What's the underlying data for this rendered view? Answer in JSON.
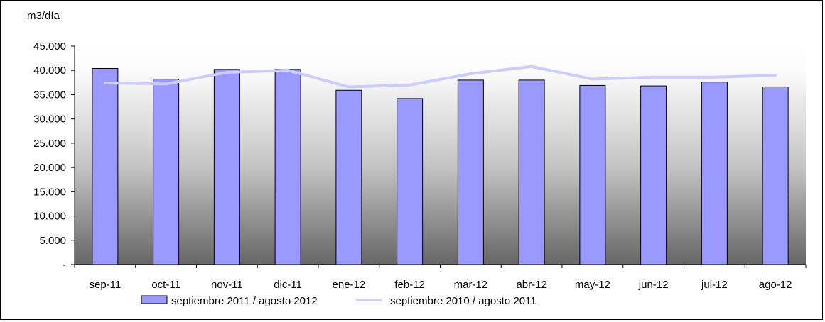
{
  "chart_data": {
    "type": "bar",
    "ylabel": "m3/día",
    "ylim": [
      0,
      45000
    ],
    "y_ticks": [
      {
        "value": 0,
        "label": "-"
      },
      {
        "value": 5000,
        "label": "5.000"
      },
      {
        "value": 10000,
        "label": "10.000"
      },
      {
        "value": 15000,
        "label": "15.000"
      },
      {
        "value": 20000,
        "label": "20.000"
      },
      {
        "value": 25000,
        "label": "25.000"
      },
      {
        "value": 30000,
        "label": "30.000"
      },
      {
        "value": 35000,
        "label": "35.000"
      },
      {
        "value": 40000,
        "label": "40.000"
      },
      {
        "value": 45000,
        "label": "45.000"
      }
    ],
    "categories": [
      "sep-11",
      "oct-11",
      "nov-11",
      "dic-11",
      "ene-12",
      "feb-12",
      "mar-12",
      "abr-12",
      "may-12",
      "jun-12",
      "jul-12",
      "ago-12"
    ],
    "series": [
      {
        "name": "septiembre 2011 / agosto 2012",
        "kind": "bar",
        "color": "#9999ff",
        "values": [
          40400,
          38200,
          40200,
          40200,
          35900,
          34200,
          38000,
          38000,
          36900,
          36800,
          37600,
          36600
        ]
      },
      {
        "name": "septiembre 2010 / agosto 2011",
        "kind": "line",
        "color": "#ccccff",
        "values": [
          37400,
          37200,
          39600,
          40000,
          36600,
          37000,
          39300,
          40800,
          38200,
          38600,
          38600,
          39000
        ]
      }
    ],
    "grid": false,
    "legend_position": "bottom"
  }
}
